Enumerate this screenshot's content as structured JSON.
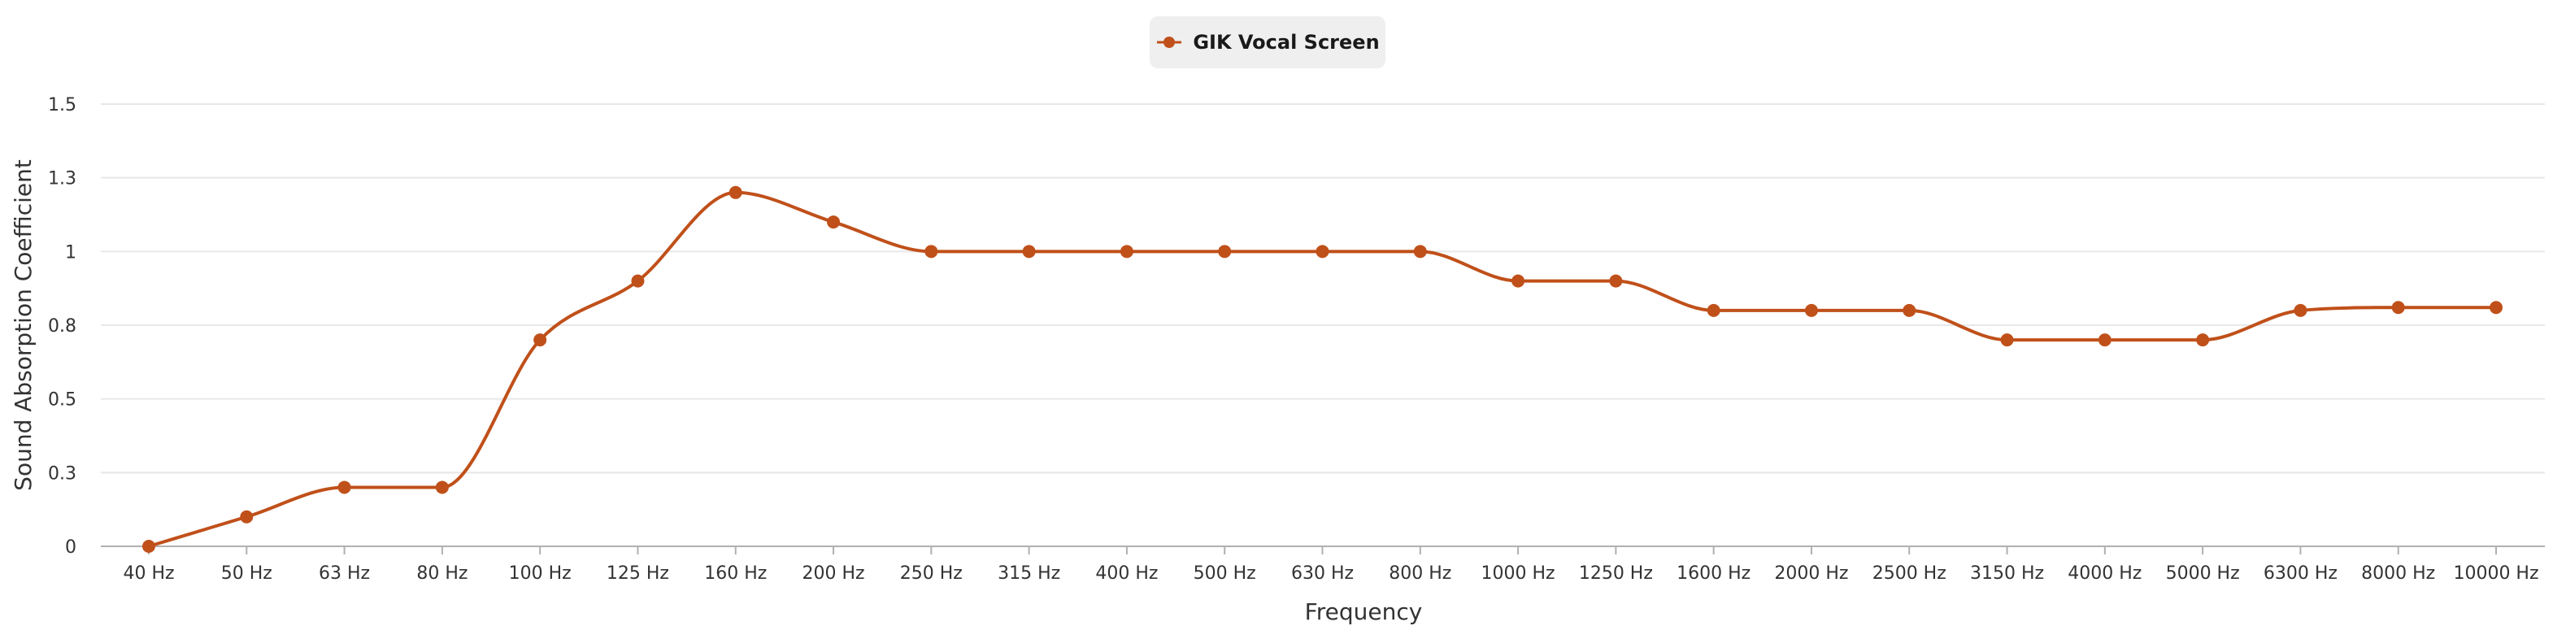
{
  "chart_data": {
    "type": "line",
    "title": "",
    "xlabel": "Frequency",
    "ylabel": "Sound Absorption Coefficient",
    "categories": [
      "40 Hz",
      "50 Hz",
      "63 Hz",
      "80 Hz",
      "100 Hz",
      "125 Hz",
      "160 Hz",
      "200 Hz",
      "250 Hz",
      "315 Hz",
      "400 Hz",
      "500 Hz",
      "630 Hz",
      "800 Hz",
      "1000 Hz",
      "1250 Hz",
      "1600 Hz",
      "2000 Hz",
      "2500 Hz",
      "3150 Hz",
      "4000 Hz",
      "5000 Hz",
      "6300 Hz",
      "8000 Hz",
      "10000 Hz"
    ],
    "yticks": [
      "0",
      "0.3",
      "0.5",
      "0.8",
      "1",
      "1.3",
      "1.5"
    ],
    "ylim": [
      0,
      1.5
    ],
    "grid": true,
    "legend_position": "top-center",
    "series": [
      {
        "name": "GIK Vocal Screen",
        "color": "#c0501a",
        "values": [
          0,
          0.1,
          0.2,
          0.2,
          0.7,
          0.9,
          1.2,
          1.1,
          1.0,
          1.0,
          1.0,
          1.0,
          1.0,
          1.0,
          0.9,
          0.9,
          0.8,
          0.8,
          0.8,
          0.7,
          0.7,
          0.7,
          0.8,
          0.81,
          0.81
        ]
      }
    ]
  }
}
